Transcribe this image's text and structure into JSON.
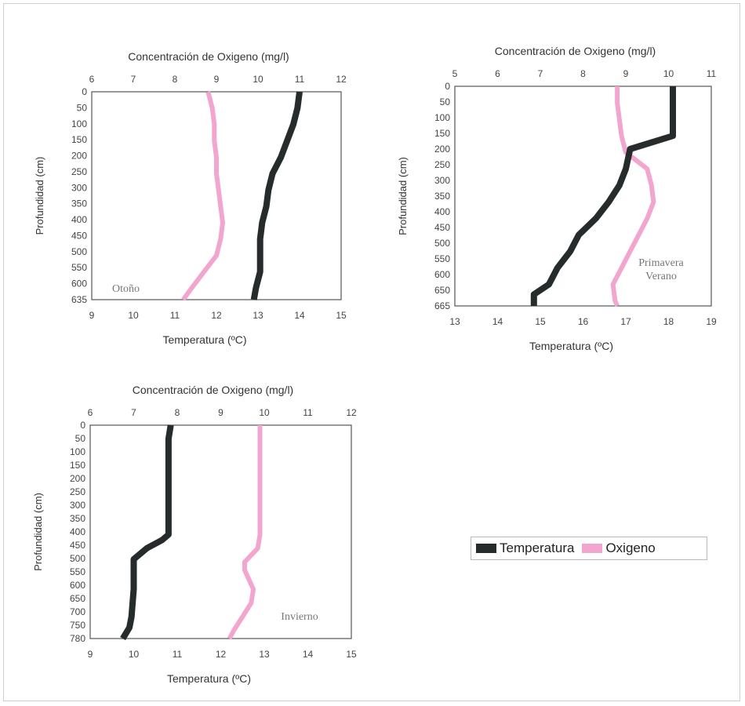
{
  "colors": {
    "temperature": "#262b2c",
    "oxygen": "#f2a6cf",
    "frame": "#cfcfcf"
  },
  "legend": {
    "items": [
      {
        "label": "Temperatura",
        "color": "#262b2c"
      },
      {
        "label": "Oxigeno",
        "color": "#f2a6cf"
      }
    ]
  },
  "chart_data": [
    {
      "type": "line",
      "season_label": "Otoño",
      "x_top_label": "Concentración de Oxigeno (mg/l)",
      "x_top_ticks": [
        "6",
        "7",
        "8",
        "9",
        "10",
        "11",
        "12"
      ],
      "x_top_range": [
        6,
        12
      ],
      "x_bottom_label": "Temperatura (ºC)",
      "x_bottom_ticks": [
        "9",
        "10",
        "11",
        "12",
        "13",
        "14",
        "15"
      ],
      "x_bottom_range": [
        9,
        15
      ],
      "ylabel": "Profundidad (cm)",
      "y_ticks": [
        "0",
        "50",
        "100",
        "150",
        "200",
        "250",
        "300",
        "350",
        "400",
        "450",
        "500",
        "550",
        "600",
        "635"
      ],
      "y_range": [
        0,
        635
      ],
      "series": [
        {
          "name": "Temperatura",
          "axis": "bottom",
          "points": [
            [
              14.0,
              0
            ],
            [
              13.95,
              50
            ],
            [
              13.85,
              100
            ],
            [
              13.7,
              150
            ],
            [
              13.55,
              200
            ],
            [
              13.35,
              250
            ],
            [
              13.25,
              300
            ],
            [
              13.2,
              350
            ],
            [
              13.1,
              400
            ],
            [
              13.05,
              450
            ],
            [
              13.05,
              500
            ],
            [
              13.05,
              550
            ],
            [
              12.95,
              600
            ],
            [
              12.9,
              635
            ]
          ]
        },
        {
          "name": "Oxigeno",
          "axis": "top",
          "points": [
            [
              8.8,
              0
            ],
            [
              8.9,
              50
            ],
            [
              8.95,
              100
            ],
            [
              8.95,
              150
            ],
            [
              9.0,
              200
            ],
            [
              9.0,
              250
            ],
            [
              9.05,
              300
            ],
            [
              9.1,
              350
            ],
            [
              9.15,
              400
            ],
            [
              9.1,
              450
            ],
            [
              9.0,
              500
            ],
            [
              8.7,
              550
            ],
            [
              8.4,
              600
            ],
            [
              8.2,
              635
            ]
          ]
        }
      ]
    },
    {
      "type": "line",
      "season_label": "Primavera\nVerano",
      "x_top_label": "Concentración de Oxigeno (mg/l)",
      "x_top_ticks": [
        "5",
        "6",
        "7",
        "8",
        "9",
        "10",
        "11"
      ],
      "x_top_range": [
        5,
        11
      ],
      "x_bottom_label": "Temperatura (ºC)",
      "x_bottom_ticks": [
        "13",
        "14",
        "15",
        "16",
        "17",
        "18",
        "19"
      ],
      "x_bottom_range": [
        13,
        19
      ],
      "ylabel": "Profundidad (cm)",
      "y_ticks": [
        "0",
        "50",
        "100",
        "150",
        "200",
        "250",
        "300",
        "350",
        "400",
        "450",
        "500",
        "550",
        "600",
        "650",
        "665"
      ],
      "y_range": [
        0,
        665
      ],
      "series": [
        {
          "name": "Temperatura",
          "axis": "bottom",
          "points": [
            [
              18.1,
              0
            ],
            [
              18.1,
              50
            ],
            [
              18.1,
              100
            ],
            [
              18.1,
              150
            ],
            [
              17.1,
              190
            ],
            [
              17.0,
              250
            ],
            [
              16.85,
              300
            ],
            [
              16.6,
              350
            ],
            [
              16.3,
              400
            ],
            [
              15.9,
              450
            ],
            [
              15.7,
              500
            ],
            [
              15.4,
              550
            ],
            [
              15.2,
              600
            ],
            [
              14.85,
              630
            ],
            [
              14.85,
              665
            ]
          ]
        },
        {
          "name": "Oxigeno",
          "axis": "top",
          "points": [
            [
              8.8,
              0
            ],
            [
              8.8,
              50
            ],
            [
              8.85,
              100
            ],
            [
              8.9,
              150
            ],
            [
              9.0,
              200
            ],
            [
              9.5,
              250
            ],
            [
              9.6,
              300
            ],
            [
              9.65,
              350
            ],
            [
              9.5,
              400
            ],
            [
              9.3,
              450
            ],
            [
              9.1,
              500
            ],
            [
              8.9,
              550
            ],
            [
              8.7,
              600
            ],
            [
              8.75,
              650
            ],
            [
              8.8,
              665
            ]
          ]
        }
      ]
    },
    {
      "type": "line",
      "season_label": "Invierno",
      "x_top_label": "Concentración de Oxigeno (mg/l)",
      "x_top_ticks": [
        "6",
        "7",
        "8",
        "9",
        "10",
        "11",
        "12"
      ],
      "x_top_range": [
        6,
        12
      ],
      "x_bottom_label": "Temperatura (ºC)",
      "x_bottom_ticks": [
        "9",
        "10",
        "11",
        "12",
        "13",
        "14",
        "15"
      ],
      "x_bottom_range": [
        9,
        15
      ],
      "ylabel": "Profundidad (cm)",
      "y_ticks": [
        "0",
        "50",
        "100",
        "150",
        "200",
        "250",
        "300",
        "350",
        "400",
        "450",
        "500",
        "550",
        "600",
        "650",
        "700",
        "750",
        "780"
      ],
      "y_range": [
        0,
        780
      ],
      "series": [
        {
          "name": "Temperatura",
          "axis": "bottom",
          "points": [
            [
              10.85,
              0
            ],
            [
              10.8,
              50
            ],
            [
              10.8,
              100
            ],
            [
              10.8,
              200
            ],
            [
              10.8,
              300
            ],
            [
              10.8,
              400
            ],
            [
              10.65,
              420
            ],
            [
              10.3,
              450
            ],
            [
              10.0,
              490
            ],
            [
              10.0,
              550
            ],
            [
              10.0,
              600
            ],
            [
              9.95,
              700
            ],
            [
              9.9,
              740
            ],
            [
              9.75,
              780
            ]
          ]
        },
        {
          "name": "Oxigeno",
          "axis": "top",
          "points": [
            [
              9.9,
              0
            ],
            [
              9.9,
              100
            ],
            [
              9.9,
              200
            ],
            [
              9.9,
              300
            ],
            [
              9.9,
              400
            ],
            [
              9.85,
              450
            ],
            [
              9.55,
              500
            ],
            [
              9.55,
              530
            ],
            [
              9.75,
              600
            ],
            [
              9.7,
              650
            ],
            [
              9.5,
              700
            ],
            [
              9.3,
              750
            ],
            [
              9.2,
              780
            ]
          ]
        }
      ]
    }
  ]
}
